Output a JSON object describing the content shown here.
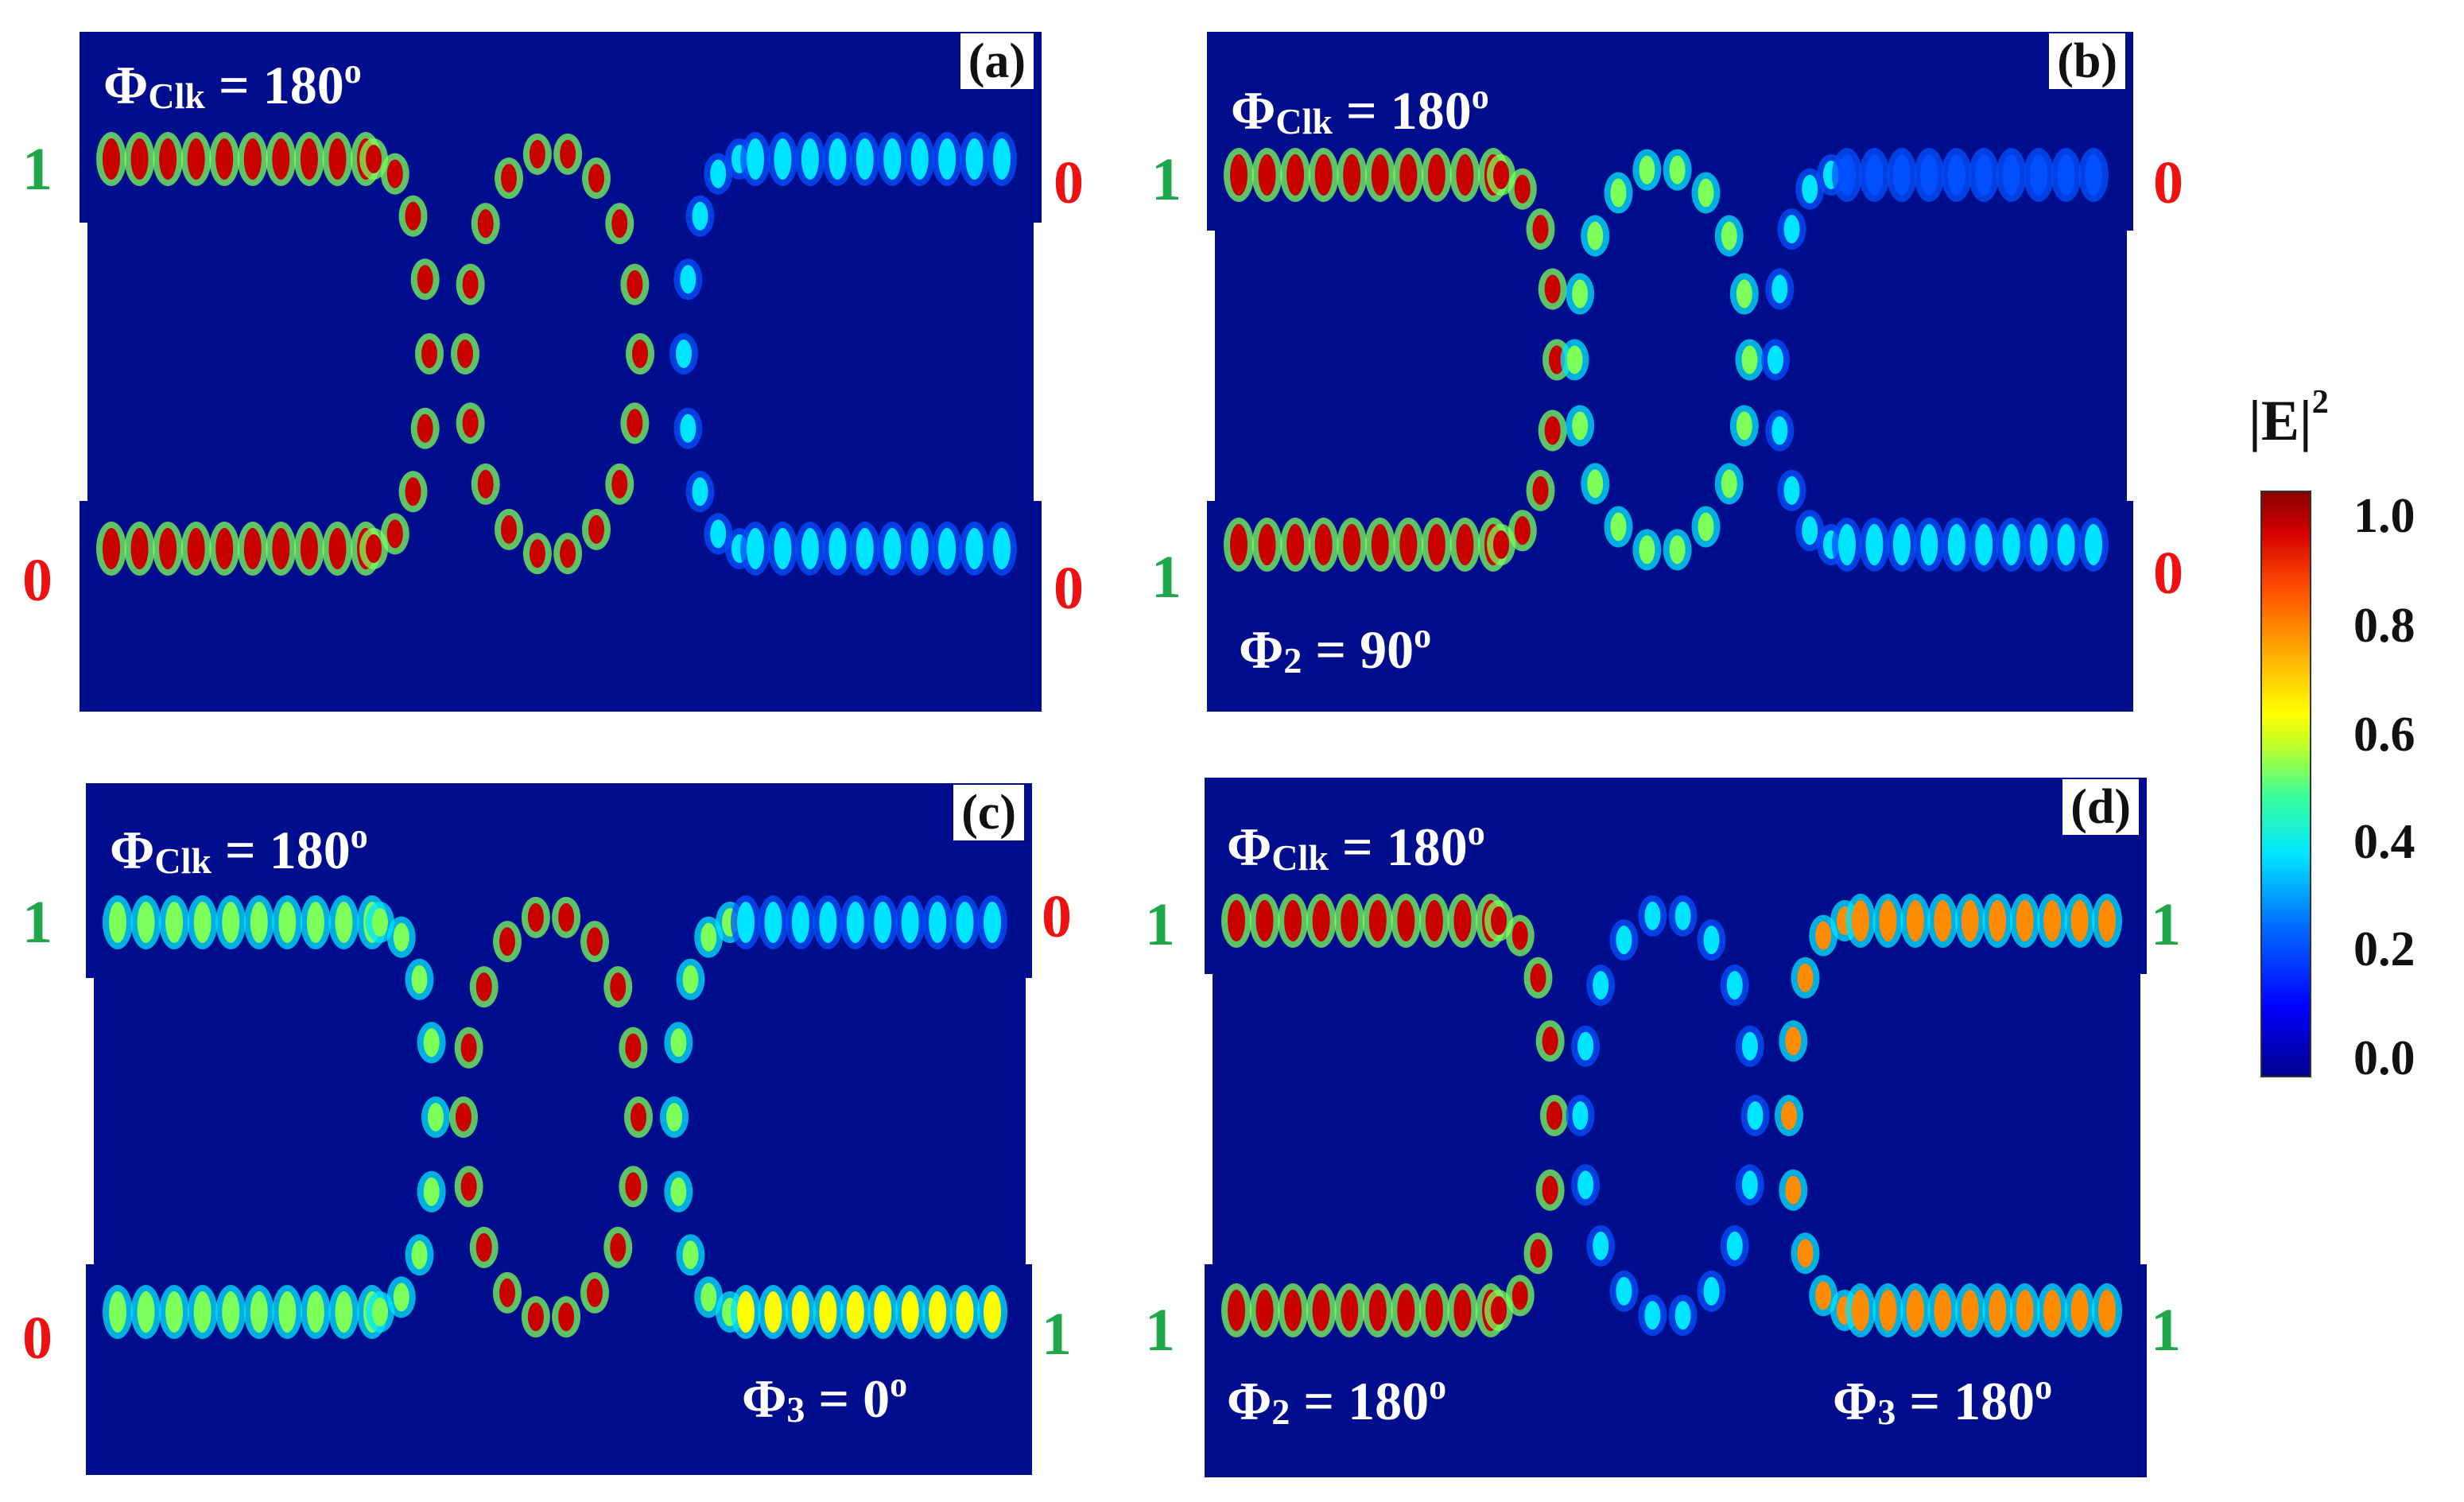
{
  "panels": [
    {
      "id": "a",
      "label": "(a)",
      "phi_clk": "180",
      "phi_extra": [],
      "left_bits": [
        "1",
        "0"
      ],
      "right_bits": [
        "0",
        "0"
      ]
    },
    {
      "id": "b",
      "label": "(b)",
      "phi_clk": "180",
      "phi_extra": [
        {
          "sub": "2",
          "value": "90"
        }
      ],
      "left_bits": [
        "1",
        "1"
      ],
      "right_bits": [
        "0",
        "0"
      ]
    },
    {
      "id": "c",
      "label": "(c)",
      "phi_clk": "180",
      "phi_extra": [
        {
          "sub": "3",
          "value": "0"
        }
      ],
      "left_bits": [
        "1",
        "0"
      ],
      "right_bits": [
        "0",
        "1"
      ]
    },
    {
      "id": "d",
      "label": "(d)",
      "phi_clk": "180",
      "phi_extra": [
        {
          "sub": "2",
          "value": "180"
        },
        {
          "sub": "3",
          "value": "180"
        }
      ],
      "left_bits": [
        "1",
        "1"
      ],
      "right_bits": [
        "1",
        "1"
      ]
    }
  ],
  "phi": {
    "symbol": "Φ",
    "clk_sub": "Clk",
    "equals": " = ",
    "degree": "o"
  },
  "colorbar": {
    "title": "|E|",
    "title_sup": "2",
    "ticks": [
      "1.0",
      "0.8",
      "0.6",
      "0.4",
      "0.2",
      "0.0"
    ]
  },
  "colors": {
    "background": "#000d8c",
    "bit_one": "#1ea84a",
    "bit_zero": "#ee1111"
  }
}
